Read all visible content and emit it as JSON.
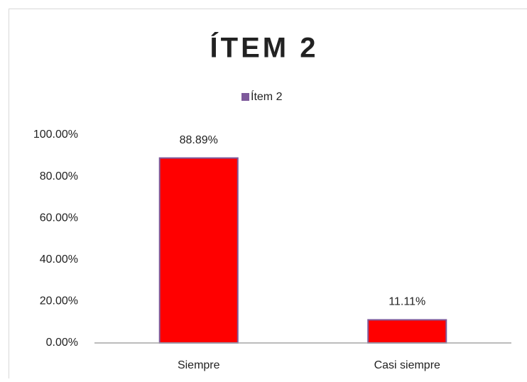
{
  "chart_data": {
    "type": "bar",
    "title": "ÍTEM 2",
    "categories": [
      "Siempre",
      "Casi siempre"
    ],
    "series": [
      {
        "name": "Ítem 2",
        "color": "#ff0000",
        "legend_color": "#7e5a9b",
        "values": [
          88.89,
          11.11
        ],
        "value_labels": [
          "88.89%",
          "11.11%"
        ]
      }
    ],
    "ylim": [
      0,
      100
    ],
    "yticks": [
      {
        "value": 0,
        "label": "0.00%"
      },
      {
        "value": 20,
        "label": "20.00%"
      },
      {
        "value": 40,
        "label": "40.00%"
      },
      {
        "value": 60,
        "label": "60.00%"
      },
      {
        "value": 80,
        "label": "80.00%"
      },
      {
        "value": 100,
        "label": "100.00%"
      }
    ],
    "grid": false,
    "legend": "top"
  }
}
